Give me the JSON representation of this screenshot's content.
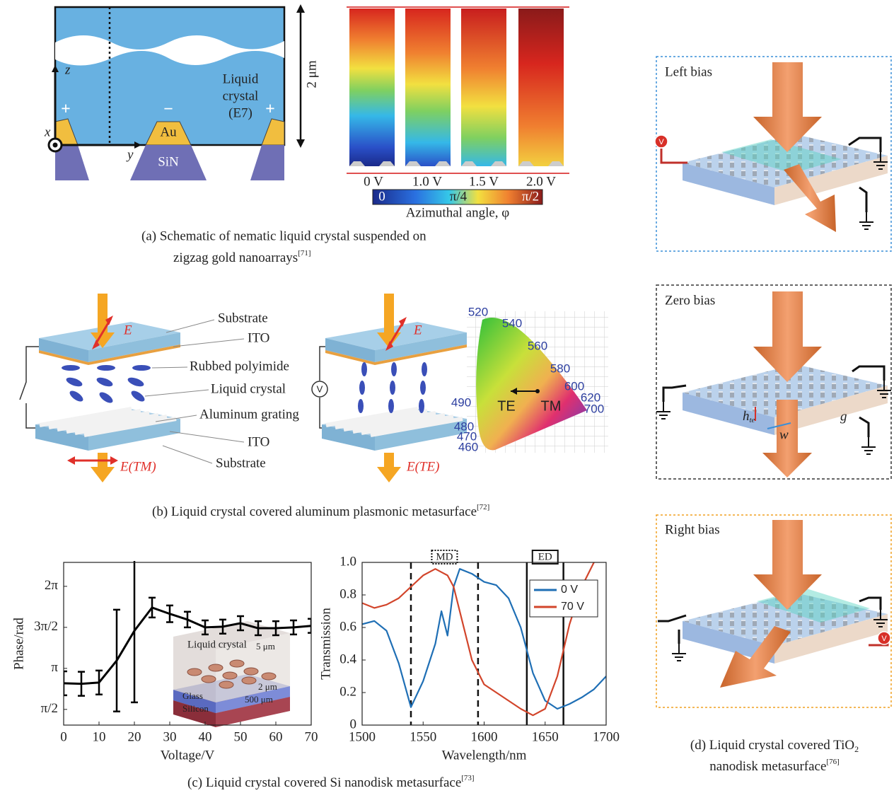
{
  "panel_a": {
    "axis_z": "z",
    "axis_x": "x",
    "axis_y": "y",
    "lc_label": [
      "Liquid",
      "crystal",
      "(E7)"
    ],
    "signs": [
      "+",
      "−",
      "+"
    ],
    "au": "Au",
    "sin": "SiN",
    "height": "2 μm",
    "voltages": [
      "0 V",
      "1.0 V",
      "1.5 V",
      "2.0 V"
    ],
    "colorbar_ticks": [
      "0",
      "π/4",
      "π/2"
    ],
    "colorbar_label": "Azimuthal angle, φ",
    "caption": [
      "(a) Schematic of nematic liquid crystal suspended on",
      "zigzag gold nanoarrays"
    ],
    "caption_ref": "[71]"
  },
  "panel_b": {
    "field_labels": [
      "E",
      "E(TM)",
      "E",
      "E(TE)"
    ],
    "layers": [
      "Substrate",
      "ITO",
      "Rubbed polyimide",
      "Liquid crystal",
      "Aluminum grating",
      "ITO",
      "Substrate"
    ],
    "voltage": "V",
    "cie_wavelengths": [
      "520",
      "540",
      "560",
      "580",
      "600",
      "620",
      "700",
      "490",
      "480",
      "470",
      "460"
    ],
    "te": "TE",
    "tm": "TM",
    "caption": "(b) Liquid crystal covered aluminum plasmonic metasurface",
    "caption_ref": "[72]"
  },
  "panel_c": {
    "inset": [
      "Liquid crystal",
      "5 μm",
      "2 μm",
      "Glass",
      "500 μm",
      "Silicon"
    ],
    "caption": "(c) Liquid crystal covered Si nanodisk metasurface",
    "caption_ref": "[73]"
  },
  "panel_d": {
    "labels": [
      "Left bias",
      "Zero bias",
      "Right bias"
    ],
    "voltage": "V",
    "dims": [
      "h",
      "te",
      "w",
      "g"
    ],
    "caption": [
      "(d) Liquid crystal covered TiO",
      "2",
      "nanodisk metasurface"
    ],
    "caption_ref": "[76]"
  },
  "chart_data": [
    {
      "type": "line",
      "x": [
        0,
        5,
        10,
        15,
        20,
        25,
        30,
        35,
        40,
        45,
        50,
        55,
        60,
        65,
        70
      ],
      "series": [
        {
          "color": "#000000",
          "values": [
            2.57,
            2.55,
            2.6,
            3.44,
            4.58,
            5.47,
            5.23,
            5.01,
            4.71,
            4.74,
            4.87,
            4.68,
            4.68,
            4.71,
            4.77
          ],
          "errors": [
            0.46,
            0.46,
            0.46,
            1.95,
            2.74,
            0.38,
            0.32,
            0.3,
            0.27,
            0.27,
            0.27,
            0.27,
            0.27,
            0.27,
            0.27
          ]
        }
      ],
      "xlim": [
        0,
        70
      ],
      "ylim": [
        0.97,
        7.2
      ],
      "xticks": [
        0,
        10,
        20,
        30,
        40,
        50,
        60,
        70
      ],
      "yticks": [
        {
          "value": 1.5708,
          "label": "π/2"
        },
        {
          "value": 3.1416,
          "label": "π"
        },
        {
          "value": 4.7124,
          "label": "3π/2"
        },
        {
          "value": 6.2832,
          "label": "2π"
        }
      ],
      "xlabel": "Voltage/V",
      "ylabel": "Phase/rad"
    },
    {
      "type": "line",
      "x": [
        1500,
        1510,
        1520,
        1530,
        1540,
        1550,
        1560,
        1565,
        1570,
        1575,
        1580,
        1590,
        1600,
        1610,
        1620,
        1630,
        1640,
        1650,
        1660,
        1670,
        1680,
        1690,
        1700
      ],
      "series": [
        {
          "name": "0 V",
          "color": "#1f6fb5",
          "values": [
            0.62,
            0.64,
            0.58,
            0.38,
            0.11,
            0.27,
            0.5,
            0.7,
            0.55,
            0.85,
            0.96,
            0.93,
            0.88,
            0.86,
            0.78,
            0.6,
            0.32,
            0.15,
            0.1,
            0.13,
            0.17,
            0.22,
            0.3
          ]
        },
        {
          "name": "70 V",
          "color": "#d2452b",
          "values": [
            0.75,
            0.72,
            0.74,
            0.78,
            0.85,
            0.92,
            0.96,
            0.94,
            0.92,
            0.85,
            0.7,
            0.4,
            0.25,
            0.2,
            0.15,
            0.1,
            0.06,
            0.1,
            0.3,
            0.62,
            0.85,
            1.0,
            null
          ]
        }
      ],
      "xlim": [
        1500,
        1700
      ],
      "ylim": [
        0,
        1
      ],
      "xticks": [
        1500,
        1550,
        1600,
        1650,
        1700
      ],
      "yticks": [
        0,
        0.2,
        0.4,
        0.6,
        0.8,
        {
          "value": 1,
          "label": "1.0"
        }
      ],
      "xlabel": "Wavelength/nm",
      "ylabel": "Transmission",
      "legend": "upper right",
      "annotations": [
        {
          "text": "MD",
          "x": [
            1540,
            1595
          ],
          "style": "dashed"
        },
        {
          "text": "ED",
          "x": [
            1635,
            1665
          ],
          "style": "solid"
        }
      ]
    }
  ]
}
